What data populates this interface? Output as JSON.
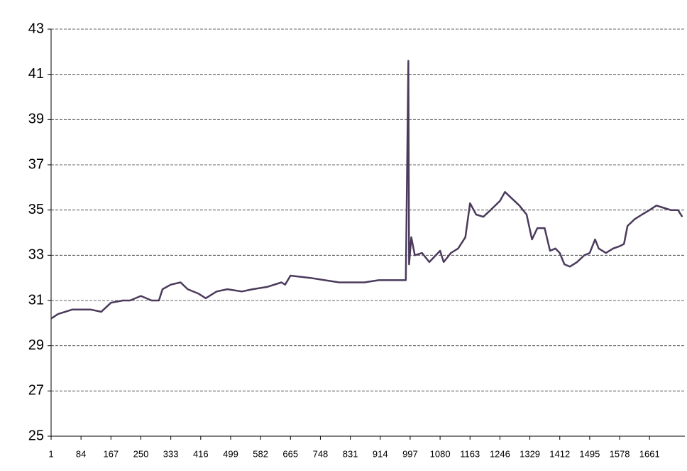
{
  "chart_data": {
    "type": "line",
    "x": [
      1,
      20,
      40,
      60,
      84,
      110,
      140,
      167,
      200,
      220,
      250,
      280,
      300,
      310,
      333,
      360,
      380,
      410,
      430,
      460,
      490,
      530,
      560,
      600,
      640,
      650,
      665,
      720,
      760,
      800,
      870,
      910,
      960,
      985,
      992,
      994,
      1000,
      1010,
      1030,
      1050,
      1080,
      1090,
      1110,
      1130,
      1150,
      1163,
      1180,
      1200,
      1220,
      1246,
      1260,
      1280,
      1300,
      1320,
      1335,
      1350,
      1370,
      1385,
      1400,
      1412,
      1425,
      1440,
      1460,
      1480,
      1495,
      1510,
      1520,
      1540,
      1560,
      1578,
      1590,
      1600,
      1620,
      1640,
      1661,
      1680,
      1700,
      1720,
      1740,
      1752
    ],
    "values": [
      30.2,
      30.4,
      30.5,
      30.6,
      30.6,
      30.6,
      30.5,
      30.9,
      31.0,
      31.0,
      31.2,
      31.0,
      31.0,
      31.5,
      31.7,
      31.8,
      31.5,
      31.3,
      31.1,
      31.4,
      31.5,
      31.4,
      31.5,
      31.6,
      31.8,
      31.7,
      32.1,
      32.0,
      31.9,
      31.8,
      31.8,
      31.9,
      31.9,
      31.9,
      41.6,
      32.6,
      33.8,
      33.0,
      33.1,
      32.7,
      33.2,
      32.7,
      33.1,
      33.3,
      33.8,
      35.3,
      34.8,
      34.7,
      35.0,
      35.4,
      35.8,
      35.5,
      35.2,
      34.8,
      33.7,
      34.2,
      34.2,
      33.2,
      33.3,
      33.1,
      32.6,
      32.5,
      32.7,
      33.0,
      33.1,
      33.7,
      33.3,
      33.1,
      33.3,
      33.4,
      33.5,
      34.3,
      34.6,
      34.8,
      35.0,
      35.2,
      35.1,
      35.0,
      35.0,
      34.7
    ],
    "color": "#4b3a5c",
    "xlim": [
      1,
      1759
    ],
    "xticks": [
      1,
      84,
      167,
      250,
      333,
      416,
      499,
      582,
      665,
      748,
      831,
      914,
      997,
      1080,
      1163,
      1246,
      1329,
      1412,
      1495,
      1578,
      1661
    ],
    "ylim": [
      25,
      43
    ],
    "yticks": [
      25,
      27,
      29,
      31,
      33,
      35,
      37,
      39,
      41,
      43
    ],
    "grid": true
  }
}
